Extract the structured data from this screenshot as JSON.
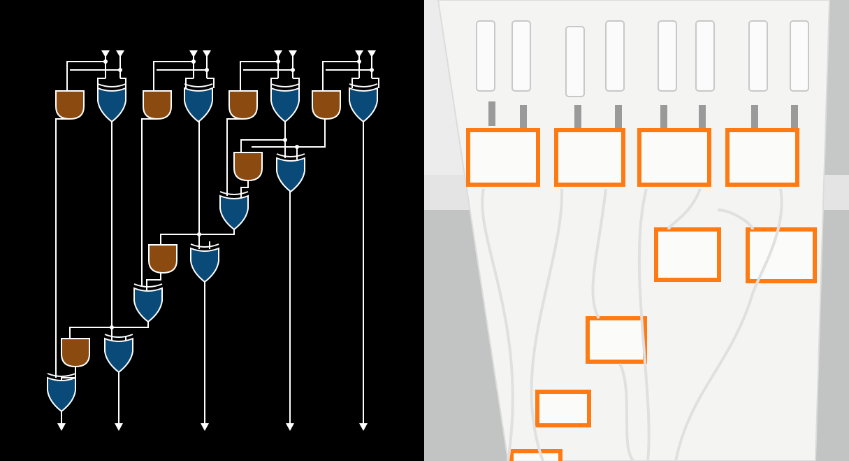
{
  "colors": {
    "background": "#000000",
    "wire": "#ffffff",
    "and_gate_fill": "#8a4a10",
    "xor_gate_fill": "#0a4a78",
    "acrylic_orange": "#ff7a12",
    "board_white": "#f4f4f2",
    "wall_grey": "#bfc0c0"
  },
  "diagram": {
    "gate_types": [
      "and-gate",
      "xor-gate"
    ],
    "input_marker": "triangle-down",
    "output_marker": "arrow-down"
  },
  "photo": {
    "description_icons": [
      "syringe-reservoir-icon",
      "valve-icon",
      "acrylic-gate-block",
      "tube"
    ]
  }
}
